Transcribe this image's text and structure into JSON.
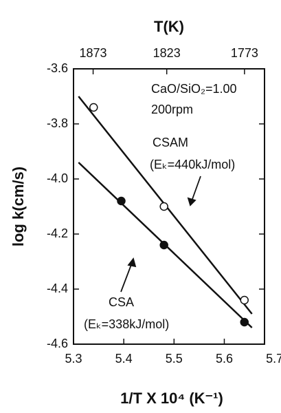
{
  "chart_data": {
    "type": "scatter",
    "title": "T(K)",
    "x_label": "1/T X 10⁴ (K⁻¹)",
    "y_label": "log k(cm/s)",
    "xlim": [
      5.3,
      5.68
    ],
    "ylim": [
      -4.6,
      -3.6
    ],
    "xticks": [
      5.3,
      5.4,
      5.5,
      5.6,
      5.7
    ],
    "yticks": [
      -3.6,
      -3.8,
      {
        "value": -4,
        "label": "-4.0"
      },
      -4.2,
      -4.4,
      -4.6
    ],
    "x2ticks": [
      1873,
      1823,
      1773
    ],
    "series": [
      {
        "name": "CSAM",
        "marker": "open",
        "color": "#111111",
        "x": [
          5.34,
          5.48,
          5.64
        ],
        "values": [
          -3.74,
          -4.1,
          -4.44
        ],
        "fit_x": [
          5.31,
          5.655
        ],
        "fit_values": [
          -3.7,
          -4.49
        ]
      },
      {
        "name": "CSA",
        "marker": "filled",
        "color": "#111111",
        "x": [
          5.395,
          5.48,
          5.64
        ],
        "values": [
          -4.08,
          -4.24,
          -4.52
        ],
        "fit_x": [
          5.31,
          5.655
        ],
        "fit_values": [
          -3.94,
          -4.54
        ]
      }
    ],
    "annotations": [
      "CaO/SiO₂=1.00",
      "200rpm",
      "(Eₖ=440kJ/mol)",
      "(Eₖ=338kJ/mol)"
    ]
  }
}
